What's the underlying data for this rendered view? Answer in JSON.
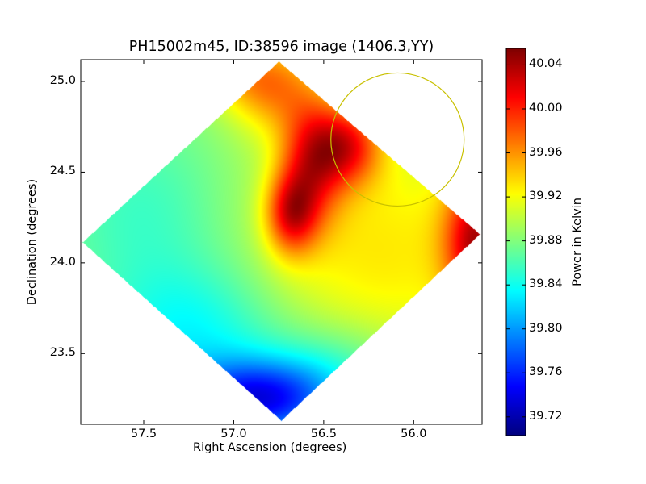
{
  "chart_data": {
    "type": "heatmap",
    "title": "PH15002m45, ID:38596 image (1406.3,YY)",
    "xlabel": "Right Ascension (degrees)",
    "ylabel": "Declination (degrees)",
    "xlim": [
      57.85,
      55.62
    ],
    "ylim": [
      23.11,
      25.12
    ],
    "xticks": [
      57.5,
      57.0,
      56.5,
      56.0
    ],
    "xtick_labels": [
      "57.5",
      "57.0",
      "56.5",
      "56.0"
    ],
    "yticks": [
      25.0,
      24.5,
      24.0,
      23.5
    ],
    "ytick_labels": [
      "25.0",
      "24.5",
      "24.0",
      "23.5"
    ],
    "colorbar": {
      "label": "Power in Kelvin",
      "vmin": 39.703,
      "vmax": 40.055,
      "ticks": [
        40.04,
        40.0,
        39.96,
        39.92,
        39.88,
        39.84,
        39.8,
        39.76,
        39.72
      ],
      "tick_labels": [
        "40.04",
        "40.00",
        "39.96",
        "39.92",
        "39.88",
        "39.84",
        "39.80",
        "39.76",
        "39.72"
      ],
      "colormap": "jet"
    },
    "annotation_circle": {
      "ra": 56.09,
      "dec": 24.68,
      "radius_deg": 0.37,
      "color": "#c8c000"
    },
    "grid": false
  }
}
